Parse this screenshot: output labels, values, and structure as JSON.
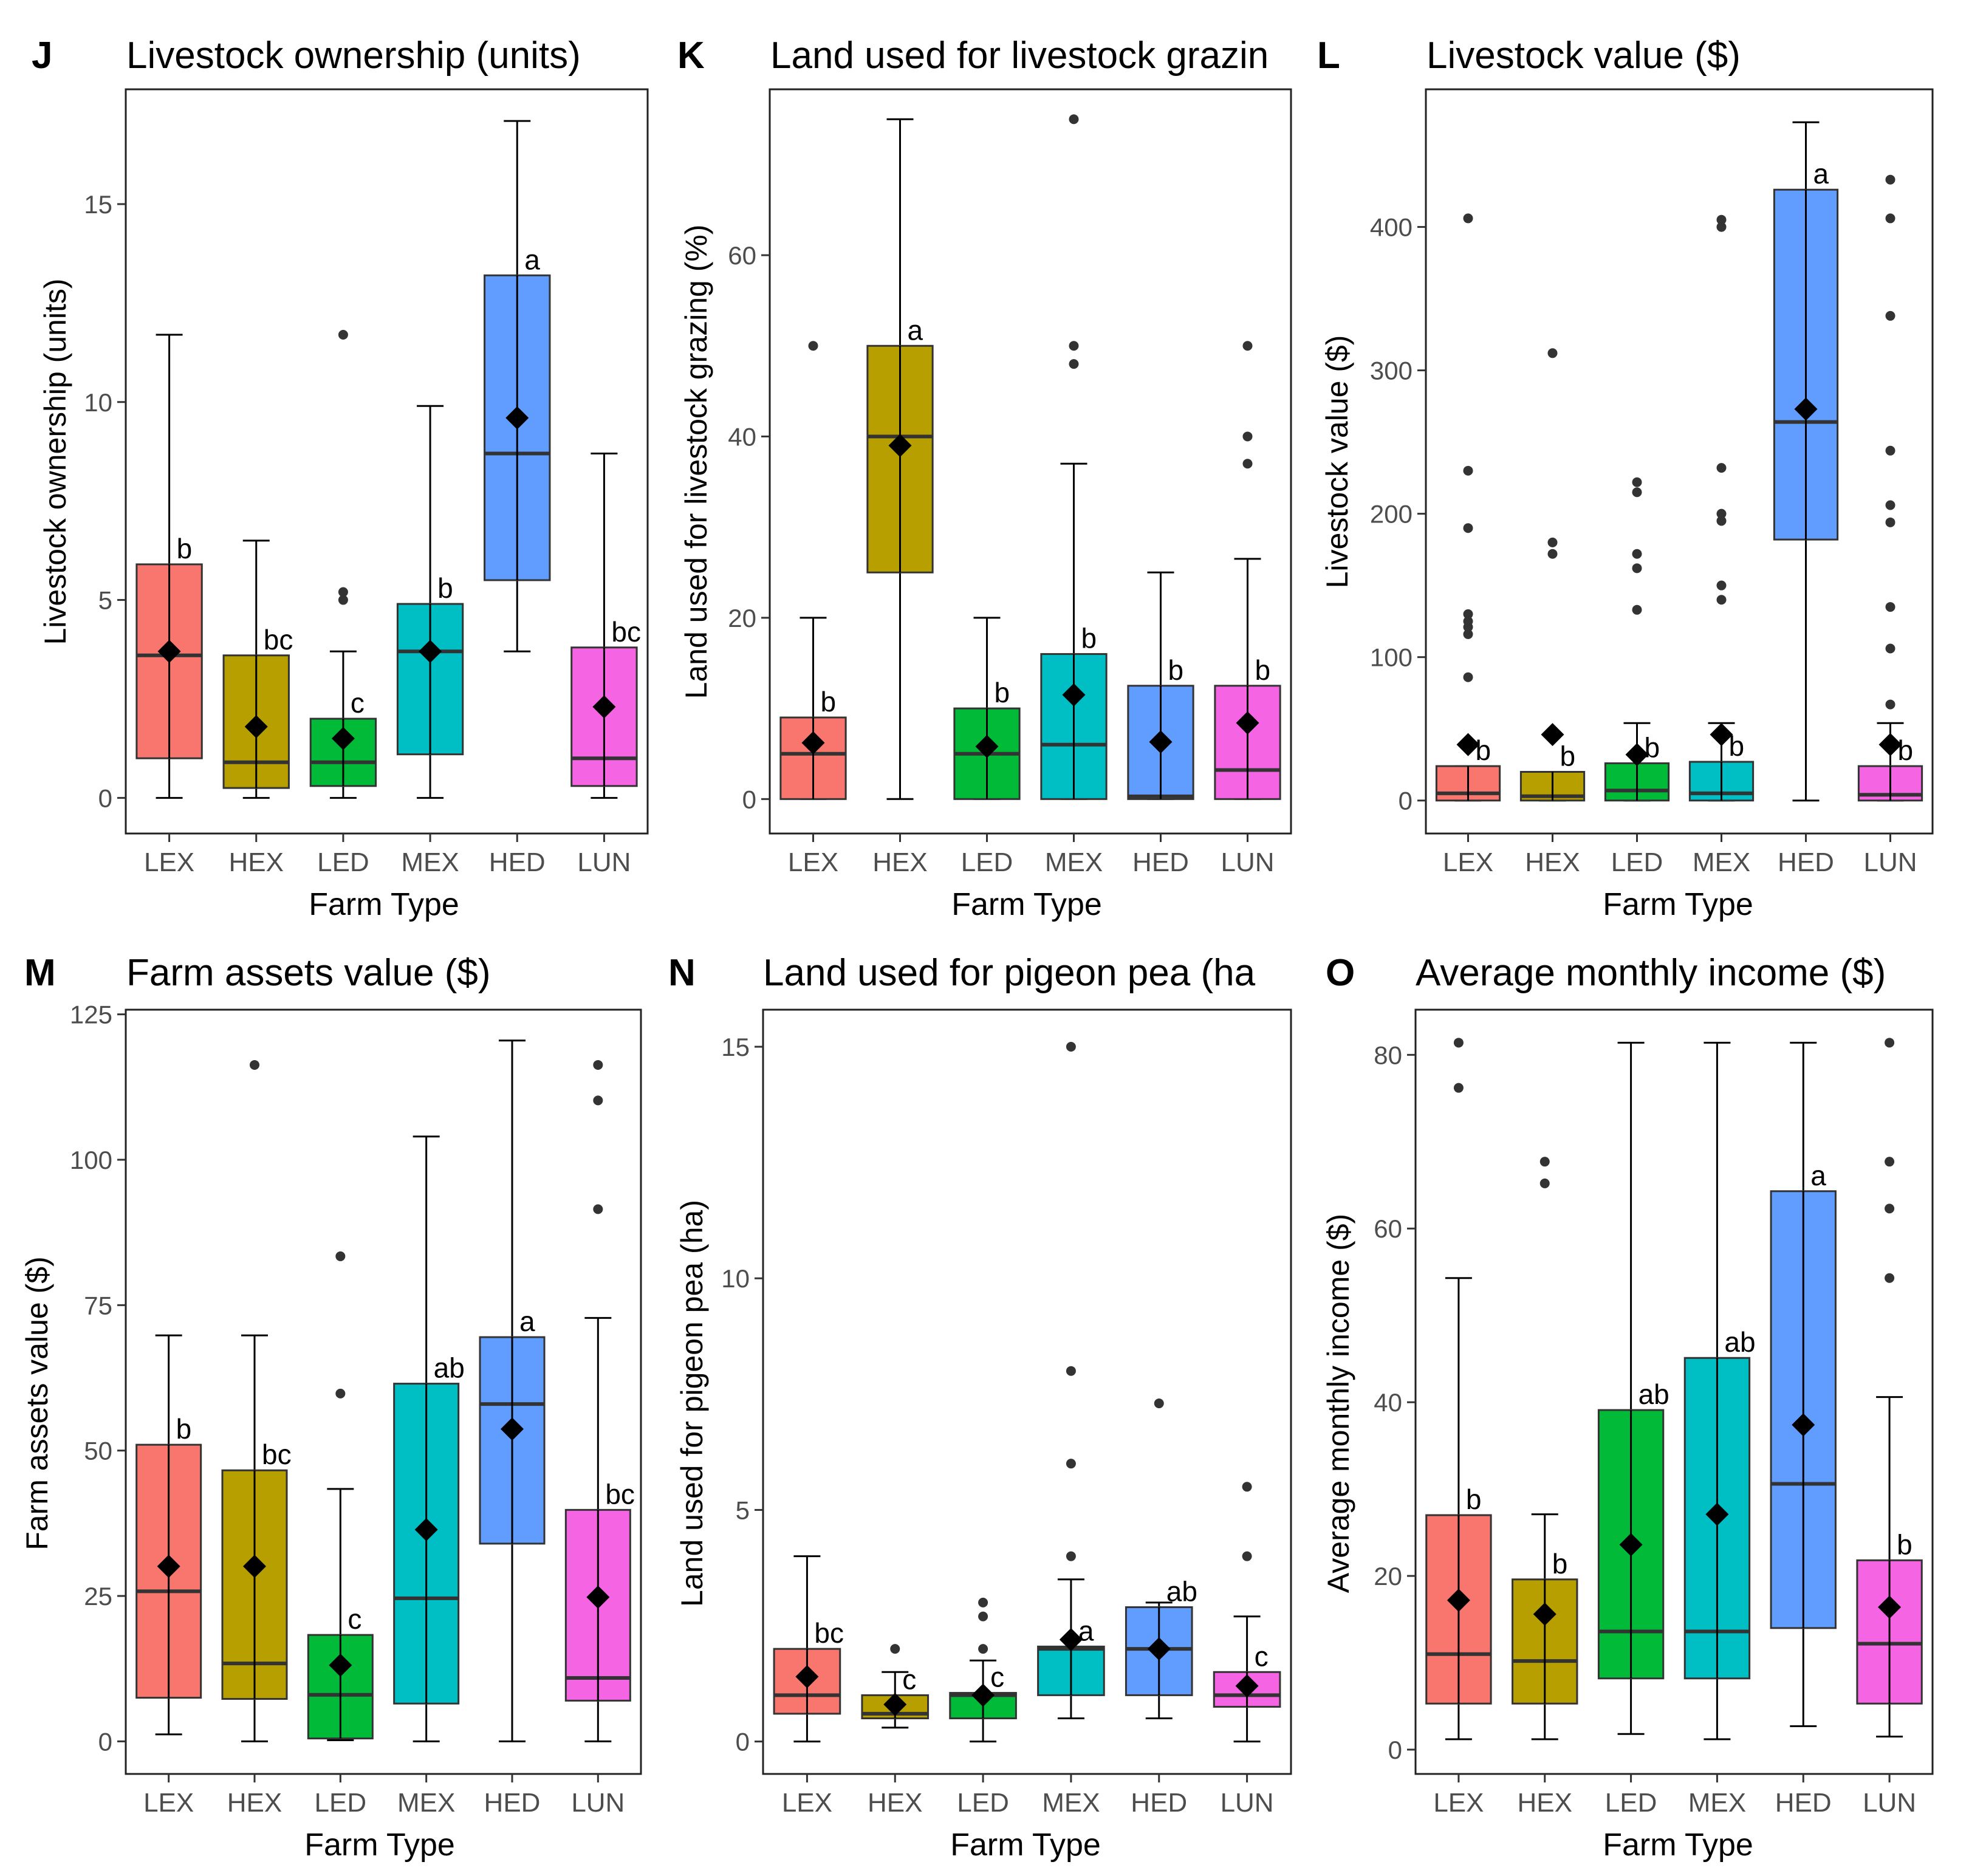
{
  "colors": {
    "LEX": "#F8766D",
    "HEX": "#B79F00",
    "LED": "#00BA38",
    "MEX": "#00BFC4",
    "HED": "#619CFF",
    "LUN": "#F564E3"
  },
  "chart_data": [
    {
      "panel": "J",
      "title": "Livestock ownership (units)",
      "type": "boxplot",
      "xlabel": "Farm Type",
      "ylabel": "Livestock ownership (units)",
      "ylim": [
        -0.9,
        17.9
      ],
      "ticks": [
        0,
        5,
        10,
        15
      ],
      "categories": [
        "LEX",
        "HEX",
        "LED",
        "MEX",
        "HED",
        "LUN"
      ],
      "boxes": [
        {
          "low": 0,
          "q1": 1.0,
          "median": 3.6,
          "q3": 5.9,
          "high": 11.7,
          "mean": 3.7,
          "outliers": [],
          "letter": "b"
        },
        {
          "low": 0,
          "q1": 0.25,
          "median": 0.9,
          "q3": 3.6,
          "high": 6.5,
          "mean": 1.8,
          "outliers": [],
          "letter": "bc"
        },
        {
          "low": 0,
          "q1": 0.3,
          "median": 0.9,
          "q3": 2.0,
          "high": 3.7,
          "mean": 1.5,
          "outliers": [
            5.0,
            5.2,
            11.7
          ],
          "letter": "c"
        },
        {
          "low": 0,
          "q1": 1.1,
          "median": 3.7,
          "q3": 4.9,
          "high": 9.9,
          "mean": 3.7,
          "outliers": [],
          "letter": "b"
        },
        {
          "low": 3.7,
          "q1": 5.5,
          "median": 8.7,
          "q3": 13.2,
          "high": 17.1,
          "mean": 9.6,
          "outliers": [],
          "letter": "a"
        },
        {
          "low": 0,
          "q1": 0.3,
          "median": 1.0,
          "q3": 3.8,
          "high": 8.7,
          "mean": 2.3,
          "outliers": [],
          "letter": "bc"
        }
      ]
    },
    {
      "panel": "K",
      "title": "Land used for livestock grazin",
      "type": "boxplot",
      "xlabel": "Farm Type",
      "ylabel": "Land used for livestock grazing (%)",
      "ylim": [
        -3.8,
        78.3
      ],
      "ticks": [
        0,
        20,
        40,
        60
      ],
      "categories": [
        "LEX",
        "HEX",
        "LED",
        "MEX",
        "HED",
        "LUN"
      ],
      "boxes": [
        {
          "low": 0,
          "q1": 0,
          "median": 5.0,
          "q3": 9.0,
          "high": 20,
          "mean": 6.2,
          "outliers": [
            50
          ],
          "letter": "b"
        },
        {
          "low": 0,
          "q1": 25,
          "median": 40,
          "q3": 50,
          "high": 75,
          "mean": 39,
          "outliers": [],
          "letter": "a"
        },
        {
          "low": 0,
          "q1": 0,
          "median": 5.0,
          "q3": 10,
          "high": 20,
          "mean": 5.8,
          "outliers": [],
          "letter": "b"
        },
        {
          "low": 0,
          "q1": 0,
          "median": 6.0,
          "q3": 16,
          "high": 37,
          "mean": 11.5,
          "outliers": [
            48,
            50,
            75
          ],
          "letter": "b"
        },
        {
          "low": 0,
          "q1": 0,
          "median": 0.3,
          "q3": 12.5,
          "high": 25,
          "mean": 6.3,
          "outliers": [],
          "letter": "b"
        },
        {
          "low": 0,
          "q1": 0,
          "median": 3.2,
          "q3": 12.5,
          "high": 26.5,
          "mean": 8.4,
          "outliers": [
            37,
            40,
            50
          ],
          "letter": "b"
        }
      ]
    },
    {
      "panel": "L",
      "title": "Livestock value ($)",
      "type": "boxplot",
      "xlabel": "Farm Type",
      "ylabel": "Livestock value ($)",
      "ylim": [
        -23,
        496
      ],
      "ticks": [
        0,
        100,
        200,
        300,
        400
      ],
      "categories": [
        "LEX",
        "HEX",
        "LED",
        "MEX",
        "HED",
        "LUN"
      ],
      "boxes": [
        {
          "low": 0,
          "q1": 0,
          "median": 5,
          "q3": 24,
          "high": 24,
          "mean": 39,
          "outliers": [
            86,
            116,
            121,
            125,
            130,
            190,
            230,
            406
          ],
          "letter": "b"
        },
        {
          "low": 0,
          "q1": 0,
          "median": 3,
          "q3": 20,
          "high": 20,
          "mean": 46,
          "outliers": [
            172,
            180,
            312
          ],
          "letter": "b"
        },
        {
          "low": 0,
          "q1": 0,
          "median": 7,
          "q3": 26,
          "high": 54,
          "mean": 32,
          "outliers": [
            133,
            162,
            172,
            215,
            222
          ],
          "letter": "b"
        },
        {
          "low": 0,
          "q1": 0,
          "median": 5,
          "q3": 27,
          "high": 54,
          "mean": 46,
          "outliers": [
            140,
            150,
            195,
            200,
            232,
            400,
            405
          ],
          "letter": "b"
        },
        {
          "low": 0,
          "q1": 182,
          "median": 264,
          "q3": 426,
          "high": 473,
          "mean": 273,
          "outliers": [],
          "letter": "a"
        },
        {
          "low": 0,
          "q1": 0,
          "median": 4,
          "q3": 24,
          "high": 54,
          "mean": 39,
          "outliers": [
            67,
            106,
            135,
            194,
            206,
            244,
            338,
            406,
            433
          ],
          "letter": "b"
        }
      ]
    },
    {
      "panel": "M",
      "title": "Farm assets value ($)",
      "type": "boxplot",
      "xlabel": "Farm Type",
      "ylabel": "Farm assets value ($)",
      "ylim": [
        -5.6,
        125.8
      ],
      "ticks": [
        0,
        25,
        50,
        75,
        100,
        125
      ],
      "categories": [
        "LEX",
        "HEX",
        "LED",
        "MEX",
        "HED",
        "LUN"
      ],
      "boxes": [
        {
          "low": 1.2,
          "q1": 7.5,
          "median": 25.8,
          "q3": 51,
          "high": 69.8,
          "mean": 30.1,
          "outliers": [],
          "letter": "b"
        },
        {
          "low": 0,
          "q1": 7.3,
          "median": 13.4,
          "q3": 46.6,
          "high": 69.8,
          "mean": 30.1,
          "outliers": [
            116.3
          ],
          "letter": "bc"
        },
        {
          "low": 0.2,
          "q1": 0.5,
          "median": 8,
          "q3": 18.3,
          "high": 43.4,
          "mean": 13.1,
          "outliers": [
            59.8,
            83.4
          ],
          "letter": "c"
        },
        {
          "low": 0,
          "q1": 6.5,
          "median": 24.6,
          "q3": 61.5,
          "high": 104,
          "mean": 36.4,
          "outliers": [],
          "letter": "ab"
        },
        {
          "low": 0,
          "q1": 34,
          "median": 58,
          "q3": 69.5,
          "high": 120.5,
          "mean": 53.7,
          "outliers": [],
          "letter": "a"
        },
        {
          "low": 0,
          "q1": 7,
          "median": 10.9,
          "q3": 39.8,
          "high": 72.8,
          "mean": 24.8,
          "outliers": [
            91.5,
            110.2,
            116.3
          ],
          "letter": "bc"
        }
      ]
    },
    {
      "panel": "N",
      "title": "Land used for pigeon pea (ha",
      "type": "boxplot",
      "xlabel": "Farm Type",
      "ylabel": "Land used for pigeon pea (ha)",
      "ylim": [
        -0.7,
        15.8
      ],
      "ticks": [
        0,
        5,
        10,
        15
      ],
      "categories": [
        "LEX",
        "HEX",
        "LED",
        "MEX",
        "HED",
        "LUN"
      ],
      "boxes": [
        {
          "low": 0,
          "q1": 0.6,
          "median": 1.0,
          "q3": 2.0,
          "high": 4.0,
          "mean": 1.4,
          "outliers": [],
          "letter": "bc"
        },
        {
          "low": 0.3,
          "q1": 0.5,
          "median": 0.6,
          "q3": 1.0,
          "high": 1.5,
          "mean": 0.8,
          "outliers": [
            2.0
          ],
          "letter": "c"
        },
        {
          "low": 0,
          "q1": 0.5,
          "median": 1.0,
          "q3": 1.05,
          "high": 1.75,
          "mean": 1.0,
          "outliers": [
            2.0,
            2.7,
            3.0
          ],
          "letter": "c"
        },
        {
          "low": 0.5,
          "q1": 1.0,
          "median": 2.0,
          "q3": 2.05,
          "high": 3.5,
          "mean": 2.2,
          "outliers": [
            4.0,
            6.0,
            8.0,
            15.0
          ],
          "letter": "a"
        },
        {
          "low": 0.5,
          "q1": 1.0,
          "median": 2.0,
          "q3": 2.9,
          "high": 3.0,
          "mean": 2.0,
          "outliers": [
            7.3
          ],
          "letter": "ab"
        },
        {
          "low": 0,
          "q1": 0.75,
          "median": 1.0,
          "q3": 1.5,
          "high": 2.7,
          "mean": 1.2,
          "outliers": [
            4.0,
            5.5
          ],
          "letter": "c"
        }
      ]
    },
    {
      "panel": "O",
      "title": "Average monthly income ($)",
      "type": "boxplot",
      "xlabel": "Farm Type",
      "ylabel": "Average monthly income ($)",
      "ylim": [
        -2.8,
        85.2
      ],
      "ticks": [
        0,
        20,
        40,
        60,
        80
      ],
      "categories": [
        "LEX",
        "HEX",
        "LED",
        "MEX",
        "HED",
        "LUN"
      ],
      "boxes": [
        {
          "low": 1.2,
          "q1": 5.3,
          "median": 11,
          "q3": 27,
          "high": 54.3,
          "mean": 17.2,
          "outliers": [
            76.2,
            81.4
          ],
          "letter": "b"
        },
        {
          "low": 1.2,
          "q1": 5.3,
          "median": 10.2,
          "q3": 19.6,
          "high": 27.1,
          "mean": 15.6,
          "outliers": [
            65.2,
            67.7
          ],
          "letter": "b"
        },
        {
          "low": 1.8,
          "q1": 8.2,
          "median": 13.6,
          "q3": 39.1,
          "high": 81.4,
          "mean": 23.6,
          "outliers": [],
          "letter": "ab"
        },
        {
          "low": 1.2,
          "q1": 8.2,
          "median": 13.6,
          "q3": 45.1,
          "high": 81.4,
          "mean": 27.1,
          "outliers": [],
          "letter": "ab"
        },
        {
          "low": 2.7,
          "q1": 14,
          "median": 30.6,
          "q3": 64.3,
          "high": 81.4,
          "mean": 37.4,
          "outliers": [],
          "letter": "a"
        },
        {
          "low": 1.5,
          "q1": 5.3,
          "median": 12.2,
          "q3": 21.8,
          "high": 40.6,
          "mean": 16.4,
          "outliers": [
            54.3,
            62.3,
            67.7,
            81.4
          ],
          "letter": "b"
        }
      ]
    }
  ]
}
